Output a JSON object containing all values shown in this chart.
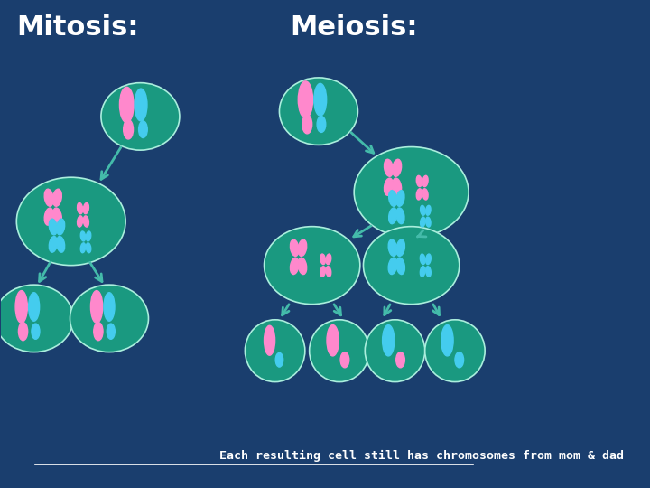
{
  "bg_color": "#1a3e6e",
  "cell_color": "#1a9980",
  "cell_edge": "#aaeedd",
  "pink": "#ff88cc",
  "blue": "#44ccee",
  "arrow_color": "#44bbaa",
  "title_color": "#ffffff",
  "text_color": "#ffffff",
  "mitosis_title": "Mitosis:",
  "meiosis_title": "Meiosis:",
  "bottom_text": "Each resulting cell still has chromosomes from mom & dad"
}
